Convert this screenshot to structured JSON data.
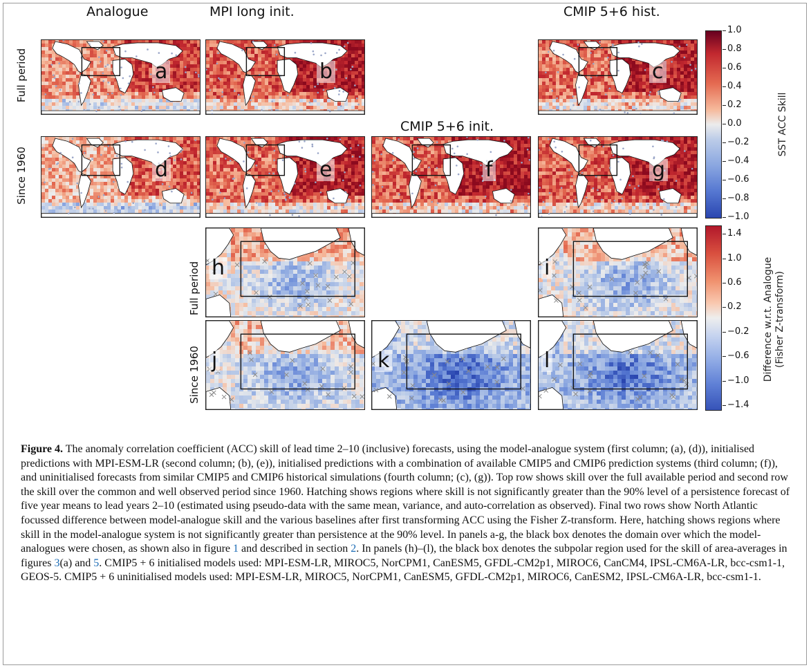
{
  "figure": {
    "column_titles": [
      "Analogue",
      "MPI long init.",
      "CMIP 5+6 init.",
      "CMIP 5+6 hist."
    ],
    "row_labels": [
      "Full period",
      "Since 1960",
      "Full period",
      "Since 1960"
    ],
    "panel_letters": [
      "a",
      "b",
      "c",
      "d",
      "e",
      "f",
      "g",
      "h",
      "i",
      "j",
      "k",
      "l"
    ],
    "colorbar_top": {
      "label": "SST ACC Skill",
      "ticks": [
        "1.0",
        "0.8",
        "0.6",
        "0.4",
        "0.2",
        "0.0",
        "−0.2",
        "−0.4",
        "−0.6",
        "−0.8",
        "−1.0"
      ]
    },
    "colorbar_bottom": {
      "label_line1": "Difference w.r.t. Analogue",
      "label_line2": "(Fisher Z-transform)",
      "ticks": [
        "1.4",
        "1.0",
        "0.6",
        "0.2",
        "−0.2",
        "−0.6",
        "−1.0",
        "−1.4"
      ]
    },
    "colors": {
      "positive": "#b2182b",
      "neutral": "#f2f2f2",
      "negative": "#2c5cc5",
      "land": "#ffffff"
    }
  },
  "caption": {
    "label": "Figure 4.",
    "part1": " The anomaly correlation coefficient (ACC) skill of lead time 2–10 (inclusive) forecasts, using the model-analogue system (first column; (a), (d)), initialised predictions with MPI-ESM-LR (second column; (b), (e)), initialised predictions with a combination of available CMIP5 and CMIP6 prediction systems (third column; (f)), and uninitialised forecasts from similar CMIP5 and CMIP6 historical simulations (fourth column; (c), (g)). Top row shows skill over the full available period and second row the skill over the common and well observed period since 1960. Hatching shows regions where skill is not significantly greater than the 90% level of a persistence forecast of five year means to lead years 2–10 (estimated using pseudo-data with the same mean, variance, and auto-correlation as observed). Final two rows show North Atlantic focussed difference between model-analogue skill and the various baselines after first transforming ACC using the Fisher Z-transform. Here, hatching shows regions where skill in the model-analogue system is not significantly greater than persistence at the 90% level. In panels a-g, the black box denotes the domain over which the model-analogues were chosen, as shown also in figure ",
    "ref1": "1",
    "part2": " and described in section ",
    "ref2": "2",
    "part3": ". In panels (h)–(l), the black box denotes the subpolar region used for the skill of area-averages in figures ",
    "ref3": "3",
    "part4": "(a) and ",
    "ref4": "5",
    "part5": ". CMIP5 + 6 initialised models used: MPI-ESM-LR, MIROC5, NorCPM1, CanESM5, GFDL-CM2p1, MIROC6, CanCM4, IPSL-CM6A-LR, bcc-csm1-1, GEOS-5. CMIP5 + 6 uninitialised models used: MPI-ESM-LR, MIROC5, NorCPM1, CanESM5, GFDL-CM2p1, MIROC6, CanESM2, IPSL-CM6A-LR, bcc-csm1-1."
  }
}
